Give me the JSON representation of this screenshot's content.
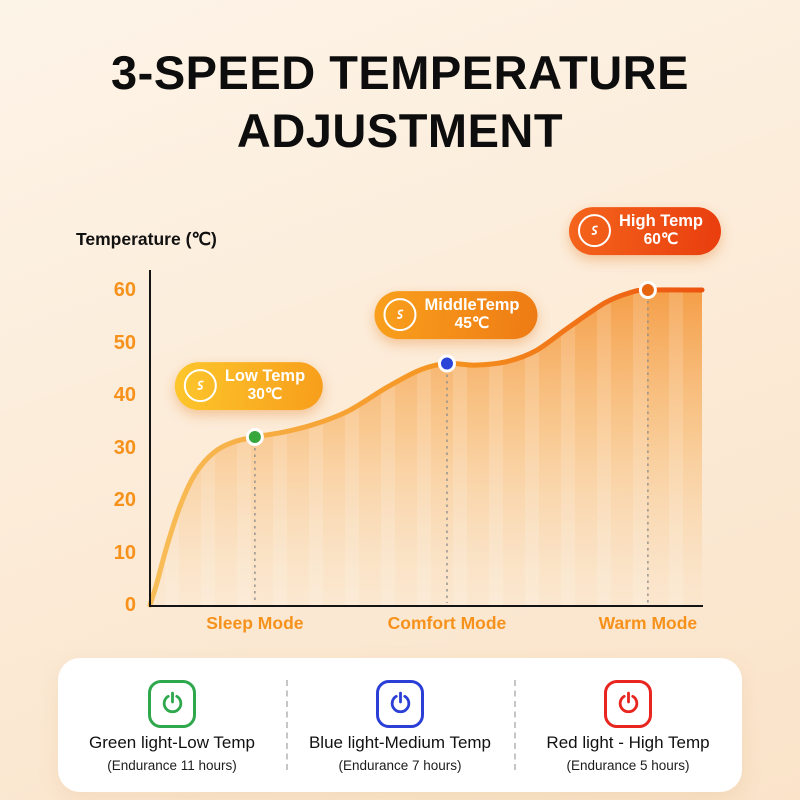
{
  "title": {
    "line1": "3-SPEED TEMPERATURE",
    "line2": "ADJUSTMENT"
  },
  "chart": {
    "y_axis_title": "Temperature (℃)",
    "badges": [
      {
        "id": "low",
        "label": "Low Temp",
        "value": "30℃",
        "gradient": [
          "#fdc62c",
          "#f79e1b"
        ]
      },
      {
        "id": "mid",
        "label": "MiddleTemp",
        "value": "45℃",
        "gradient": [
          "#f9a01d",
          "#ee7b14"
        ]
      },
      {
        "id": "high",
        "label": "High Temp",
        "value": "60℃",
        "gradient": [
          "#f4651c",
          "#e93d0e"
        ]
      }
    ]
  },
  "chart_data": {
    "type": "area",
    "title": "3-Speed Temperature Adjustment",
    "ylabel": "Temperature (℃)",
    "categories": [
      "Sleep Mode",
      "Comfort Mode",
      "Warm Mode"
    ],
    "values": [
      30,
      45,
      60
    ],
    "y_ticks": [
      60,
      50,
      40,
      30,
      20,
      10,
      0
    ],
    "ylim": [
      0,
      60
    ],
    "grid": false,
    "category_x": [
      0.19,
      0.538,
      0.902
    ],
    "markers": [
      {
        "x": 0.19,
        "t": 32,
        "color": "#36a63d",
        "category": "Sleep Mode"
      },
      {
        "x": 0.538,
        "t": 46,
        "color": "#2a46d9",
        "category": "Comfort Mode"
      },
      {
        "x": 0.902,
        "t": 60,
        "color": "#e8650f",
        "category": "Warm Mode"
      }
    ],
    "curve": [
      {
        "x": 0,
        "t": 0
      },
      {
        "x": 0.012,
        "t": 4
      },
      {
        "x": 0.03,
        "t": 11
      },
      {
        "x": 0.055,
        "t": 19
      },
      {
        "x": 0.082,
        "t": 25
      },
      {
        "x": 0.115,
        "t": 29
      },
      {
        "x": 0.15,
        "t": 31
      },
      {
        "x": 0.19,
        "t": 32
      },
      {
        "x": 0.245,
        "t": 33
      },
      {
        "x": 0.3,
        "t": 34.5
      },
      {
        "x": 0.36,
        "t": 37
      },
      {
        "x": 0.43,
        "t": 41.5
      },
      {
        "x": 0.49,
        "t": 44.8
      },
      {
        "x": 0.538,
        "t": 46
      },
      {
        "x": 0.59,
        "t": 45.7
      },
      {
        "x": 0.648,
        "t": 46.4
      },
      {
        "x": 0.7,
        "t": 48.5
      },
      {
        "x": 0.76,
        "t": 53
      },
      {
        "x": 0.825,
        "t": 57.6
      },
      {
        "x": 0.87,
        "t": 59.5
      },
      {
        "x": 0.902,
        "t": 60
      },
      {
        "x": 1,
        "t": 60
      }
    ],
    "accent_color": "#f6921c"
  },
  "legend": {
    "items": [
      {
        "label": "Green light-Low Temp",
        "endurance": "(Endurance 11 hours)",
        "color": "#2fa84d"
      },
      {
        "label": "Blue light-Medium Temp",
        "endurance": "(Endurance 7 hours)",
        "color": "#2b3fd6"
      },
      {
        "label": "Red light - High Temp",
        "endurance": "(Endurance 5 hours)",
        "color": "#e8251f"
      }
    ]
  }
}
